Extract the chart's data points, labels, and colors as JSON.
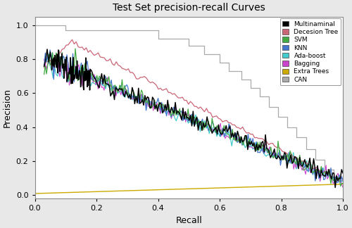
{
  "title": "Test Set precision-recall Curves",
  "xlabel": "Recall",
  "ylabel": "Precision",
  "xlim": [
    0.0,
    1.0
  ],
  "ylim": [
    -0.02,
    1.05
  ],
  "legend_labels": [
    "Multinaminal",
    "Decesion Tree",
    "SVM",
    "KNN",
    "Ada-boost",
    "Bagging",
    "Extra Trees",
    "CAN"
  ],
  "legend_colors": [
    "#000000",
    "#cc6677",
    "#44aa44",
    "#4477cc",
    "#44cccc",
    "#cc44cc",
    "#ccaa00",
    "#aaaaaa"
  ],
  "background_color": "#e8e8e8",
  "plot_bg_color": "#ffffff",
  "border_color": "#888888"
}
